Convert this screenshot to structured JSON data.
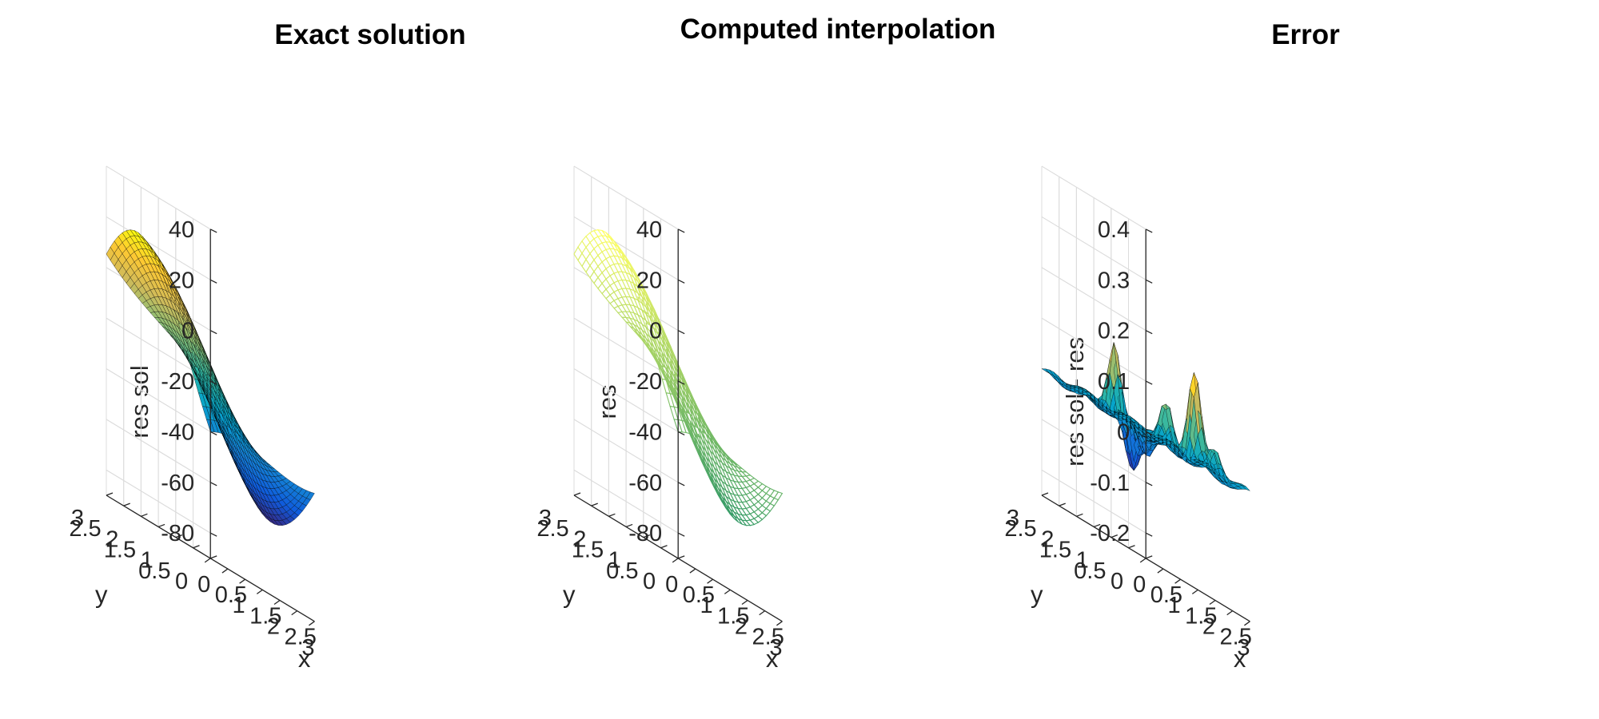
{
  "chart_data": [
    {
      "type": "surface",
      "style": "faceted surface",
      "colormap": "parula",
      "title": "Exact solution",
      "xlabel": "x",
      "ylabel": "y",
      "zlabel": "res sol",
      "xlim": [
        0,
        3
      ],
      "ylim": [
        0,
        3
      ],
      "zlim": [
        -90,
        40
      ],
      "xticks": [
        "0",
        "0.5",
        "1",
        "1.5",
        "2",
        "2.5",
        "3"
      ],
      "yticks": [
        "0",
        "0.5",
        "1",
        "1.5",
        "2",
        "2.5",
        "3"
      ],
      "zticks": [
        "-80",
        "-60",
        "-40",
        "-20",
        "0",
        "20",
        "40"
      ],
      "grid": true,
      "z_samples": [
        {
          "x": 0,
          "y": 3,
          "z": 20
        },
        {
          "x": 0,
          "y": 2.7,
          "z": 27
        },
        {
          "x": 1.5,
          "y": 1.5,
          "z": -20
        },
        {
          "x": 3,
          "y": 3,
          "z": -25
        },
        {
          "x": 0,
          "y": 0,
          "z": -63
        }
      ]
    },
    {
      "type": "surface",
      "style": "mesh",
      "colormap": "summer",
      "title": "Computed interpolation",
      "xlabel": "x",
      "ylabel": "y",
      "zlabel": "res",
      "xlim": [
        0,
        3
      ],
      "ylim": [
        0,
        3
      ],
      "zlim": [
        -90,
        40
      ],
      "xticks": [
        "0",
        "0.5",
        "1",
        "1.5",
        "2",
        "2.5",
        "3"
      ],
      "yticks": [
        "0",
        "0.5",
        "1",
        "1.5",
        "2",
        "2.5",
        "3"
      ],
      "zticks": [
        "-80",
        "-60",
        "-40",
        "-20",
        "0",
        "20",
        "40"
      ],
      "grid": true,
      "z_samples": [
        {
          "x": 0,
          "y": 3,
          "z": 20
        },
        {
          "x": 0,
          "y": 2.7,
          "z": 27
        },
        {
          "x": 1.5,
          "y": 1.5,
          "z": -20
        },
        {
          "x": 3,
          "y": 3,
          "z": -25
        },
        {
          "x": 0,
          "y": 0,
          "z": -63
        }
      ]
    },
    {
      "type": "surface",
      "style": "faceted surface",
      "colormap": "parula",
      "title": "Error",
      "xlabel": "x",
      "ylabel": "y",
      "zlabel": "res sol - res",
      "xlim": [
        0,
        3
      ],
      "ylim": [
        0,
        3
      ],
      "zlim": [
        -0.25,
        0.4
      ],
      "xticks": [
        "0",
        "0.5",
        "1",
        "1.5",
        "2",
        "2.5",
        "3"
      ],
      "yticks": [
        "0",
        "0.5",
        "1",
        "1.5",
        "2",
        "2.5",
        "3"
      ],
      "zticks": [
        "-0.2",
        "-0.1",
        "0",
        "0.1",
        "0.2",
        "0.3",
        "0.4"
      ],
      "grid": true,
      "peaks": [
        {
          "x": 2.0,
          "y": 0.6,
          "z": 0.18
        },
        {
          "x": 0.8,
          "y": 1.7,
          "z": 0.14
        },
        {
          "x": 1.1,
          "y": 0.5,
          "z": 0.08
        },
        {
          "x": 2.5,
          "y": 0.5,
          "z": 0.05
        }
      ],
      "troughs": [
        {
          "x": 1.2,
          "y": 1.6,
          "z": -0.1
        },
        {
          "x": 1.9,
          "y": 1.9,
          "z": -0.05
        },
        {
          "x": 0.6,
          "y": 0.7,
          "z": -0.05
        }
      ]
    }
  ]
}
